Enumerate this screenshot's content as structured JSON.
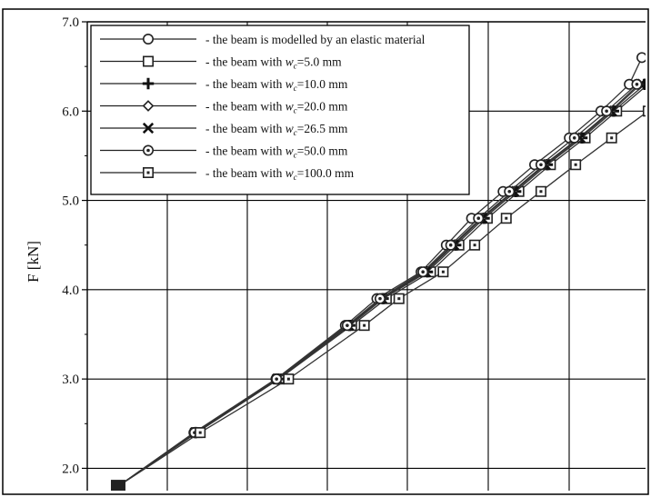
{
  "chart_data": {
    "type": "line",
    "title": "",
    "xlabel": "",
    "ylabel": "F [kN]",
    "ylim": [
      1.75,
      7.0
    ],
    "xlim": [
      0,
      1.0
    ],
    "y_ticks": [
      {
        "value": 2.0,
        "label": "2.0"
      },
      {
        "value": 3.0,
        "label": "3.0"
      },
      {
        "value": 4.0,
        "label": "4.0"
      },
      {
        "value": 5.0,
        "label": "5.0"
      },
      {
        "value": 6.0,
        "label": "6.0"
      },
      {
        "value": 7.0,
        "label": "7.0"
      }
    ],
    "grid": true,
    "legend_position": "top-left",
    "series": [
      {
        "marker": "circle",
        "label_before": "- the beam is modelled by an elastic material",
        "label_sub": "",
        "label_after": "",
        "x": [
          0.17,
          0.29,
          0.42,
          0.53,
          0.58,
          0.65,
          0.69,
          0.73,
          0.78,
          0.83,
          0.885,
          0.935,
          0.98,
          1.0
        ],
        "y": [
          1.8,
          2.4,
          3.0,
          3.6,
          3.9,
          4.2,
          4.5,
          4.8,
          5.1,
          5.4,
          5.7,
          6.0,
          6.3,
          6.6
        ]
      },
      {
        "marker": "square",
        "label_before": "- the beam with ",
        "label_sub": "c",
        "label_after": "=5.0 mm",
        "x": [
          0.17,
          0.295,
          0.425,
          0.54,
          0.595,
          0.665,
          0.71,
          0.755,
          0.805,
          0.855,
          0.91,
          0.96,
          1.01
        ],
        "y": [
          1.8,
          2.4,
          3.0,
          3.6,
          3.9,
          4.2,
          4.5,
          4.8,
          5.1,
          5.4,
          5.7,
          6.0,
          6.3
        ]
      },
      {
        "marker": "plus",
        "label_before": "- the beam with ",
        "label_sub": "c",
        "label_after": "=10.0 mm",
        "x": [
          0.17,
          0.293,
          0.423,
          0.537,
          0.59,
          0.66,
          0.705,
          0.75,
          0.8,
          0.85,
          0.905,
          0.955,
          1.005
        ],
        "y": [
          1.8,
          2.4,
          3.0,
          3.6,
          3.9,
          4.2,
          4.5,
          4.8,
          5.1,
          5.4,
          5.7,
          6.0,
          6.3
        ]
      },
      {
        "marker": "diamond",
        "label_before": "- the beam with ",
        "label_sub": "c",
        "label_after": "=20.0 mm",
        "x": [
          0.17,
          0.292,
          0.422,
          0.535,
          0.588,
          0.655,
          0.7,
          0.745,
          0.795,
          0.845,
          0.9,
          0.95,
          0.995
        ],
        "y": [
          1.8,
          2.4,
          3.0,
          3.6,
          3.9,
          4.2,
          4.5,
          4.8,
          5.1,
          5.4,
          5.7,
          6.0,
          6.3
        ]
      },
      {
        "marker": "x",
        "label_before": "- the beam with ",
        "label_sub": "c",
        "label_after": "=26.5 mm",
        "x": [
          0.17,
          0.292,
          0.422,
          0.535,
          0.588,
          0.657,
          0.702,
          0.747,
          0.797,
          0.847,
          0.902,
          0.952,
          0.998
        ],
        "y": [
          1.8,
          2.4,
          3.0,
          3.6,
          3.9,
          4.2,
          4.5,
          4.8,
          5.1,
          5.4,
          5.7,
          6.0,
          6.3
        ]
      },
      {
        "marker": "circle-dot",
        "label_before": "- the beam with ",
        "label_sub": "c",
        "label_after": "=50.0 mm",
        "x": [
          0.17,
          0.291,
          0.421,
          0.533,
          0.585,
          0.653,
          0.697,
          0.741,
          0.79,
          0.84,
          0.893,
          0.944,
          0.992
        ],
        "y": [
          1.8,
          2.4,
          3.0,
          3.6,
          3.9,
          4.2,
          4.5,
          4.8,
          5.1,
          5.4,
          5.7,
          6.0,
          6.3
        ]
      },
      {
        "marker": "square-dot",
        "label_before": "- the beam with ",
        "label_sub": "c",
        "label_after": "=100.0 mm",
        "x": [
          0.17,
          0.3,
          0.44,
          0.56,
          0.615,
          0.685,
          0.735,
          0.785,
          0.84,
          0.895,
          0.952,
          1.01
        ],
        "y": [
          1.8,
          2.4,
          3.0,
          3.6,
          3.9,
          4.2,
          4.5,
          4.8,
          5.1,
          5.4,
          5.7,
          6.0
        ]
      }
    ]
  }
}
